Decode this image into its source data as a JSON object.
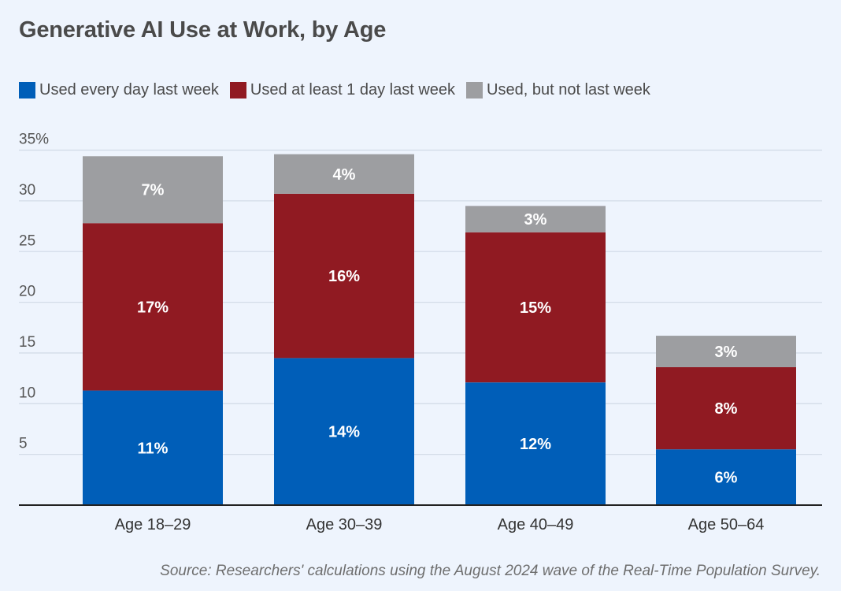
{
  "chart_data": {
    "type": "bar",
    "stacked": true,
    "title": "Generative AI Use at Work, by Age",
    "categories": [
      "Age 18–29",
      "Age 30–39",
      "Age 40–49",
      "Age 50–64"
    ],
    "series": [
      {
        "name": "Used every day last week",
        "color": "#005eb8",
        "values": [
          11.3,
          14.5,
          12.1,
          5.5
        ],
        "labels": [
          "11%",
          "14%",
          "12%",
          "6%"
        ]
      },
      {
        "name": "Used at least 1 day last week",
        "color": "#901a22",
        "values": [
          16.5,
          16.2,
          14.8,
          8.1
        ],
        "labels": [
          "17%",
          "16%",
          "15%",
          "8%"
        ]
      },
      {
        "name": "Used, but not last week",
        "color": "#9d9ea1",
        "values": [
          6.6,
          3.9,
          2.6,
          3.1
        ],
        "labels": [
          "7%",
          "4%",
          "3%",
          "3%"
        ]
      }
    ],
    "ylim": [
      0,
      35
    ],
    "yticks": [
      5,
      10,
      15,
      20,
      25,
      30,
      35
    ],
    "ytick_labels": [
      "5",
      "10",
      "15",
      "20",
      "25",
      "30",
      "35%"
    ],
    "grid": true,
    "legend": "top-left"
  },
  "source": "Source: Researchers' calculations using the August 2024 wave of the Real-Time Population Survey."
}
